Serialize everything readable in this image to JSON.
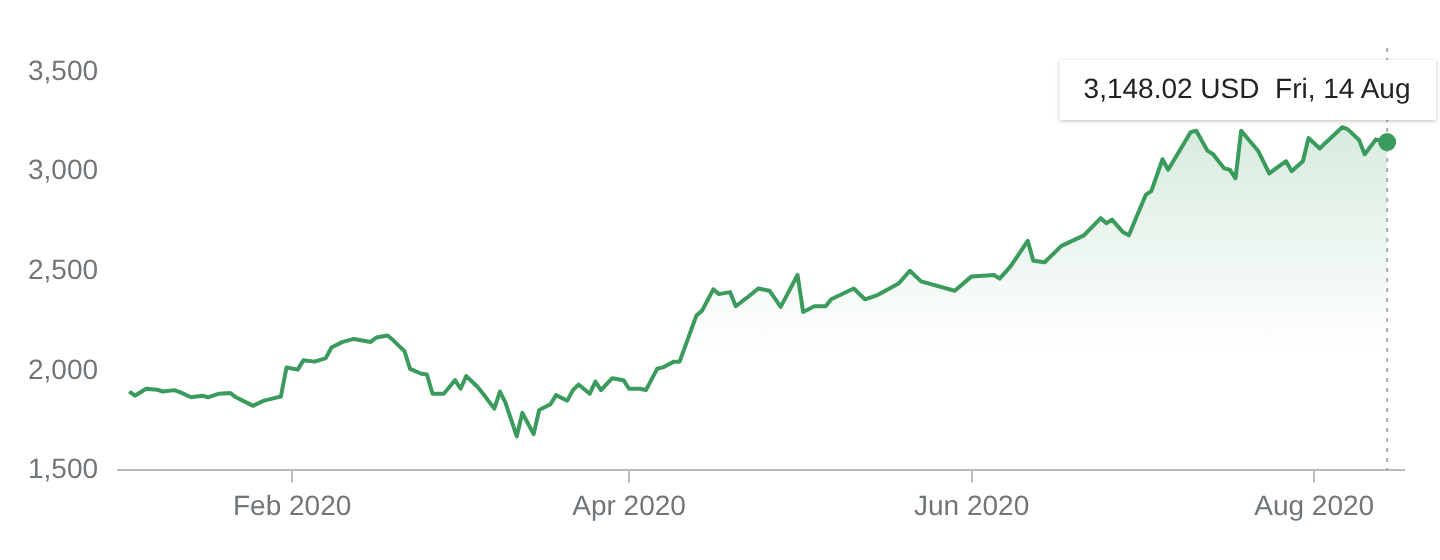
{
  "chart_data": {
    "type": "area",
    "x": [
      "2020-01-03",
      "2020-01-04",
      "2020-01-06",
      "2020-01-08",
      "2020-01-09",
      "2020-01-11",
      "2020-01-12",
      "2020-01-14",
      "2020-01-16",
      "2020-01-17",
      "2020-01-19",
      "2020-01-21",
      "2020-01-22",
      "2020-01-24",
      "2020-01-25",
      "2020-01-27",
      "2020-01-29",
      "2020-01-30",
      "2020-01-31",
      "2020-02-02",
      "2020-02-03",
      "2020-02-05",
      "2020-02-07",
      "2020-02-08",
      "2020-02-10",
      "2020-02-12",
      "2020-02-15",
      "2020-02-16",
      "2020-02-18",
      "2020-02-19",
      "2020-02-21",
      "2020-02-22",
      "2020-02-24",
      "2020-02-25",
      "2020-02-26",
      "2020-02-28",
      "2020-03-01",
      "2020-03-02",
      "2020-03-03",
      "2020-03-05",
      "2020-03-06",
      "2020-03-08",
      "2020-03-09",
      "2020-03-10",
      "2020-03-12",
      "2020-03-13",
      "2020-03-15",
      "2020-03-16",
      "2020-03-18",
      "2020-03-19",
      "2020-03-21",
      "2020-03-22",
      "2020-03-23",
      "2020-03-25",
      "2020-03-26",
      "2020-03-27",
      "2020-03-29",
      "2020-03-31",
      "2020-04-01",
      "2020-04-03",
      "2020-04-04",
      "2020-04-06",
      "2020-04-07",
      "2020-04-09",
      "2020-04-10",
      "2020-04-13",
      "2020-04-14",
      "2020-04-16",
      "2020-04-17",
      "2020-04-19",
      "2020-04-20",
      "2020-04-22",
      "2020-04-24",
      "2020-04-26",
      "2020-04-28",
      "2020-05-01",
      "2020-05-02",
      "2020-05-04",
      "2020-05-06",
      "2020-05-07",
      "2020-05-11",
      "2020-05-13",
      "2020-05-15",
      "2020-05-19",
      "2020-05-21",
      "2020-05-23",
      "2020-05-29",
      "2020-06-01",
      "2020-06-05",
      "2020-06-06",
      "2020-06-08",
      "2020-06-11",
      "2020-06-12",
      "2020-06-14",
      "2020-06-17",
      "2020-06-21",
      "2020-06-24",
      "2020-06-25",
      "2020-06-26",
      "2020-06-28",
      "2020-06-29",
      "2020-07-02",
      "2020-07-03",
      "2020-07-05",
      "2020-07-06",
      "2020-07-10",
      "2020-07-11",
      "2020-07-13",
      "2020-07-14",
      "2020-07-16",
      "2020-07-17",
      "2020-07-18",
      "2020-07-19",
      "2020-07-22",
      "2020-07-24",
      "2020-07-27",
      "2020-07-28",
      "2020-07-30",
      "2020-07-31",
      "2020-08-02",
      "2020-08-03",
      "2020-08-06",
      "2020-08-07",
      "2020-08-09",
      "2020-08-10",
      "2020-08-12",
      "2020-08-14"
    ],
    "series": [
      {
        "color": "#3a9b5c",
        "values": [
          1896,
          1875,
          1910,
          1905,
          1896,
          1903,
          1893,
          1867,
          1875,
          1867,
          1885,
          1888,
          1867,
          1839,
          1824,
          1850,
          1864,
          1871,
          2017,
          2006,
          2053,
          2046,
          2064,
          2117,
          2145,
          2160,
          2145,
          2167,
          2177,
          2153,
          2099,
          2010,
          1985,
          1981,
          1885,
          1885,
          1953,
          1910,
          1974,
          1920,
          1885,
          1810,
          1896,
          1839,
          1671,
          1789,
          1682,
          1803,
          1832,
          1878,
          1850,
          1903,
          1931,
          1885,
          1946,
          1903,
          1963,
          1953,
          1910,
          1910,
          1903,
          2010,
          2017,
          2046,
          2046,
          2278,
          2302,
          2409,
          2385,
          2395,
          2324,
          2367,
          2413,
          2402,
          2321,
          2481,
          2295,
          2324,
          2324,
          2359,
          2413,
          2359,
          2377,
          2438,
          2502,
          2449,
          2402,
          2474,
          2481,
          2463,
          2527,
          2652,
          2552,
          2545,
          2627,
          2680,
          2766,
          2741,
          2759,
          2695,
          2680,
          2883,
          2902,
          3062,
          3009,
          3198,
          3205,
          3105,
          3087,
          3016,
          3009,
          2966,
          3205,
          3105,
          2991,
          3052,
          3002,
          3052,
          3169,
          3116,
          3144,
          3223,
          3212,
          3159,
          3087,
          3162,
          3148.02
        ]
      }
    ],
    "xlim": [
      "2020-01-01",
      "2020-08-17"
    ],
    "xticks": [
      {
        "value": "2020-02-01",
        "label": "Feb 2020"
      },
      {
        "value": "2020-04-01",
        "label": "Apr 2020"
      },
      {
        "value": "2020-06-01",
        "label": "Jun 2020"
      },
      {
        "value": "2020-08-01",
        "label": "Aug 2020"
      }
    ],
    "ylim": [
      1500,
      3500
    ],
    "yticks": [
      {
        "value": 1500,
        "label": "1,500"
      },
      {
        "value": 2000,
        "label": "2,000"
      },
      {
        "value": 2500,
        "label": "2,500"
      },
      {
        "value": 3000,
        "label": "3,000"
      },
      {
        "value": 3500,
        "label": "3,500"
      }
    ],
    "grid": false,
    "legend": false,
    "marker": "none",
    "line_style": "solid",
    "ref_lines": [
      {
        "axis": "x",
        "value": "2020-08-14",
        "color": "#aaaaaa",
        "line_style": "dotted"
      }
    ],
    "annotations": [
      {
        "text": "3,148.02 USD  Fri, 14 Aug",
        "x": "2020-08-14",
        "y": 3148.02
      }
    ]
  }
}
